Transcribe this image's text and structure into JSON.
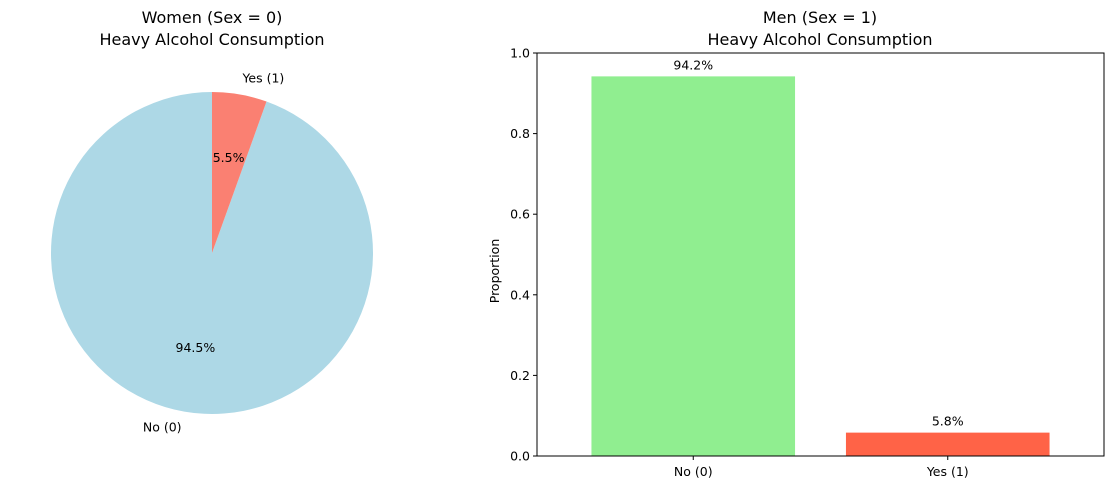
{
  "chart_data": [
    {
      "type": "pie",
      "title": "Women (Sex = 0)",
      "subtitle": "Heavy Alcohol Consumption",
      "slices": [
        {
          "label": "No (0)",
          "value": 94.5,
          "pct_label": "94.5%",
          "color": "#add8e6"
        },
        {
          "label": "Yes (1)",
          "value": 5.5,
          "pct_label": "5.5%",
          "color": "#fa8072"
        }
      ],
      "start_angle_deg": 90,
      "direction": "counterclockwise"
    },
    {
      "type": "bar",
      "title": "Men (Sex = 1)",
      "subtitle": "Heavy Alcohol Consumption",
      "xlabel": "",
      "ylabel": "Proportion",
      "ylim": [
        0,
        1
      ],
      "yticks": [
        "0.0",
        "0.2",
        "0.4",
        "0.6",
        "0.8",
        "1.0"
      ],
      "categories": [
        "No (0)",
        "Yes (1)"
      ],
      "values": [
        0.942,
        0.058
      ],
      "value_labels": [
        "94.2%",
        "5.8%"
      ],
      "colors": [
        "#90ee90",
        "#ff6347"
      ]
    }
  ]
}
